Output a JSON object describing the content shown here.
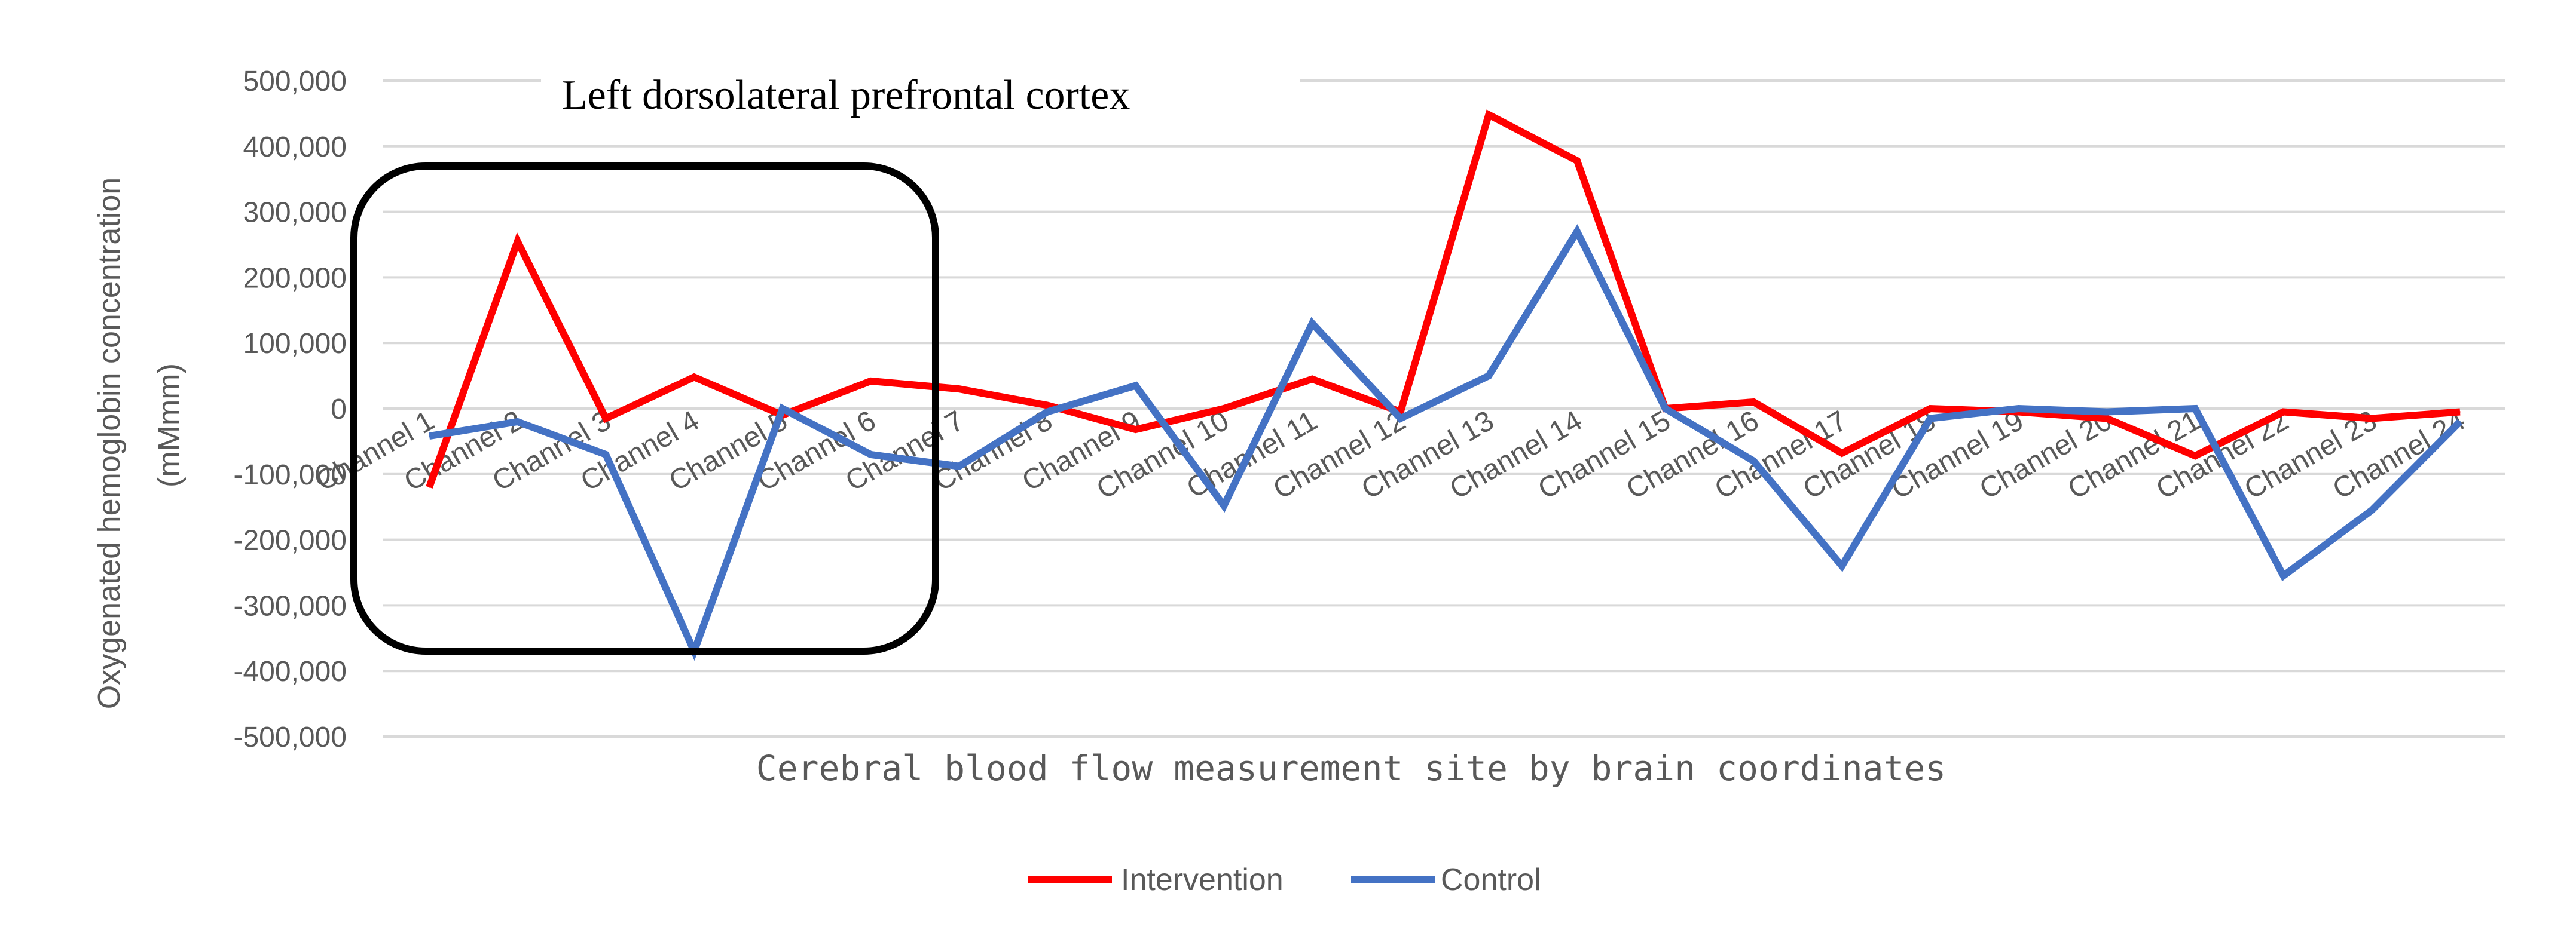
{
  "chart_data": {
    "type": "line",
    "title": "Left dorsolateral prefrontal cortex",
    "xlabel": "Cerebral blood flow measurement site by brain coordinates",
    "ylabel_line1": "Oxygenated hemoglobin concentration",
    "ylabel_line2": "(mMmm)",
    "ylim": [
      -500000,
      500000
    ],
    "yticks": [
      500000,
      400000,
      300000,
      200000,
      100000,
      0,
      -100000,
      -200000,
      -300000,
      -400000,
      -500000
    ],
    "ytick_labels": [
      "500,000",
      "400,000",
      "300,000",
      "200,000",
      "100,000",
      "0",
      "-100,000",
      "-200,000",
      "-300,000",
      "-400,000",
      "-500,000"
    ],
    "categories": [
      "Channel 1",
      "Channel 2",
      "Channel 3",
      "Channel 4",
      "Channel 5",
      "Channel 6",
      "Channel 7",
      "Channel 8",
      "Channel 9",
      "Channel 10",
      "Channel 11",
      "Channel 12",
      "Channel 13",
      "Channel 14",
      "Channel 15",
      "Channel 16",
      "Channel 17",
      "Channel 18",
      "Channel 19",
      "Channel 20",
      "Channel 21",
      "Channel 22",
      "Channel 23",
      "Channel 24"
    ],
    "series": [
      {
        "name": "Intervention",
        "color": "#ff0000",
        "values": [
          -120000,
          255000,
          -15000,
          48000,
          -10000,
          42000,
          30000,
          5000,
          -32000,
          0,
          45000,
          -5000,
          448000,
          378000,
          0,
          10000,
          -68000,
          0,
          -5000,
          -15000,
          -72000,
          -5000,
          -15000,
          -5000
        ]
      },
      {
        "name": "Control",
        "color": "#4472c4",
        "values": [
          -42000,
          -20000,
          -70000,
          -370000,
          0,
          -70000,
          -88000,
          -5000,
          35000,
          -148000,
          130000,
          -15000,
          50000,
          270000,
          0,
          -80000,
          -240000,
          -15000,
          0,
          -5000,
          0,
          -255000,
          -155000,
          -20000
        ]
      }
    ],
    "annotation": "rounded box highlighting Channels 1-6",
    "legend_position": "bottom",
    "grid": true
  }
}
